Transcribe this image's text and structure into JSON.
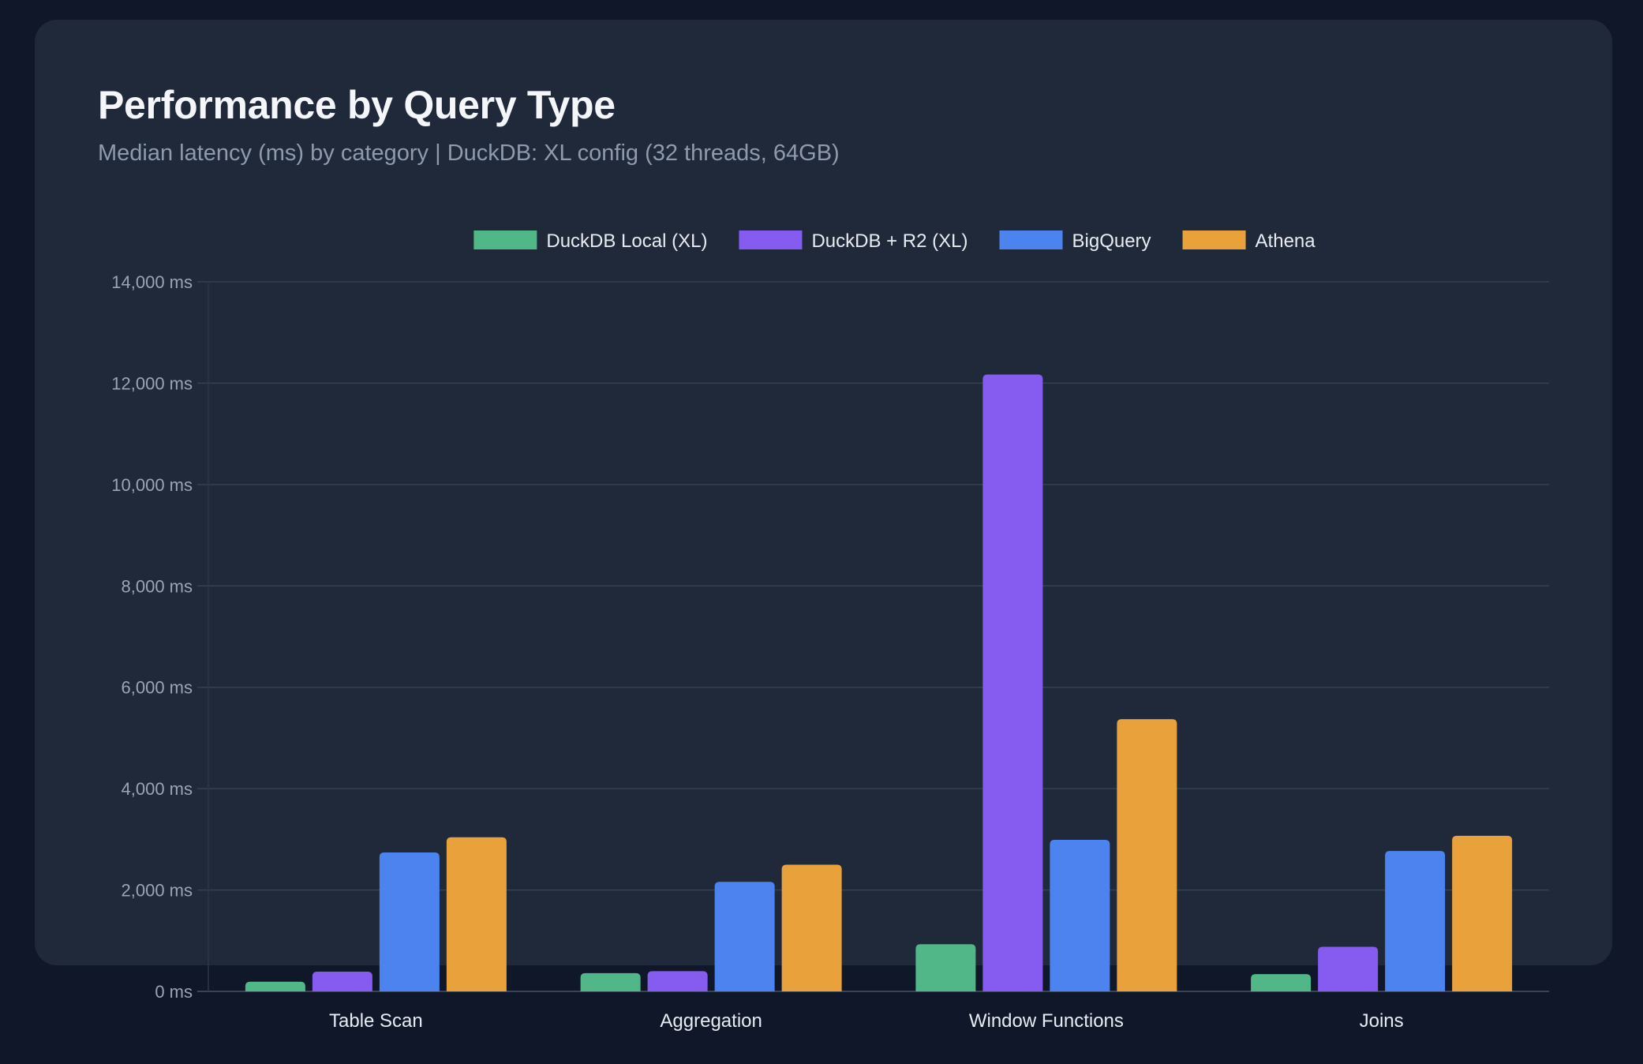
{
  "header": {
    "title": "Performance by Query Type",
    "subtitle": "Median latency (ms) by category | DuckDB: XL config (32 threads, 64GB)"
  },
  "colors": {
    "background": "#0f1729",
    "card": "#1f293a",
    "grid": "#334155"
  },
  "chart_data": {
    "type": "bar",
    "title": "Performance by Query Type",
    "subtitle": "Median latency (ms) by category | DuckDB: XL config (32 threads, 64GB)",
    "categories": [
      "Table Scan",
      "Aggregation",
      "Window Functions",
      "Joins"
    ],
    "series": [
      {
        "name": "DuckDB Local (XL)",
        "color": "#52b788",
        "values": [
          190,
          360,
          930,
          340
        ]
      },
      {
        "name": "DuckDB + R2 (XL)",
        "color": "#865cf0",
        "values": [
          390,
          400,
          12170,
          880
        ]
      },
      {
        "name": "BigQuery",
        "color": "#4c83ef",
        "values": [
          2740,
          2160,
          2990,
          2770
        ]
      },
      {
        "name": "Athena",
        "color": "#e9a23b",
        "values": [
          3040,
          2500,
          5370,
          3070
        ]
      }
    ],
    "yticks": [
      "0 ms",
      "2,000 ms",
      "4,000 ms",
      "6,000 ms",
      "8,000 ms",
      "10,000 ms",
      "12,000 ms",
      "14,000 ms"
    ],
    "ytick_values": [
      0,
      2000,
      4000,
      6000,
      8000,
      10000,
      12000,
      14000
    ],
    "ylim": [
      0,
      14000
    ],
    "xlabel": "",
    "ylabel": "",
    "grid": true,
    "legend": "top-center"
  }
}
